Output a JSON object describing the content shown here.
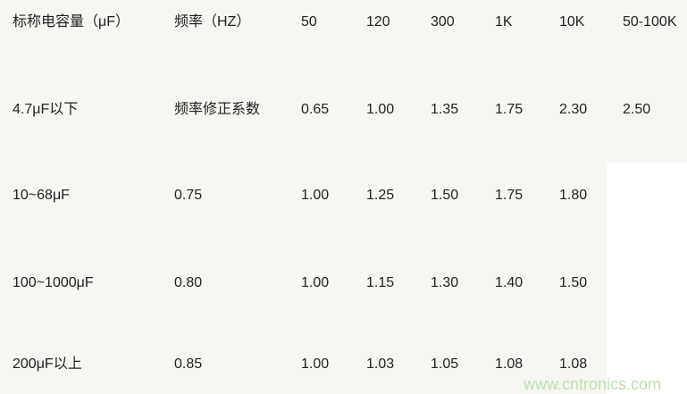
{
  "table": {
    "header": [
      "标称电容量（μF）",
      "频率（HZ）",
      "50",
      "120",
      "300",
      "1K",
      "10K",
      "50-100K"
    ],
    "rows": [
      [
        "4.7μF以下",
        "频率修正系数",
        "0.65",
        "1.00",
        "1.35",
        "1.75",
        "2.30",
        "2.50"
      ],
      [
        "10~68μF",
        "0.75",
        "1.00",
        "1.25",
        "1.50",
        "1.75",
        "1.80"
      ],
      [
        "100~1000μF",
        "0.80",
        "1.00",
        "1.15",
        "1.30",
        "1.40",
        "1.50"
      ],
      [
        "200μF以上",
        "0.85",
        "1.00",
        "1.03",
        "1.05",
        "1.08",
        "1.08"
      ]
    ]
  },
  "watermark": "www.cntronics.com"
}
